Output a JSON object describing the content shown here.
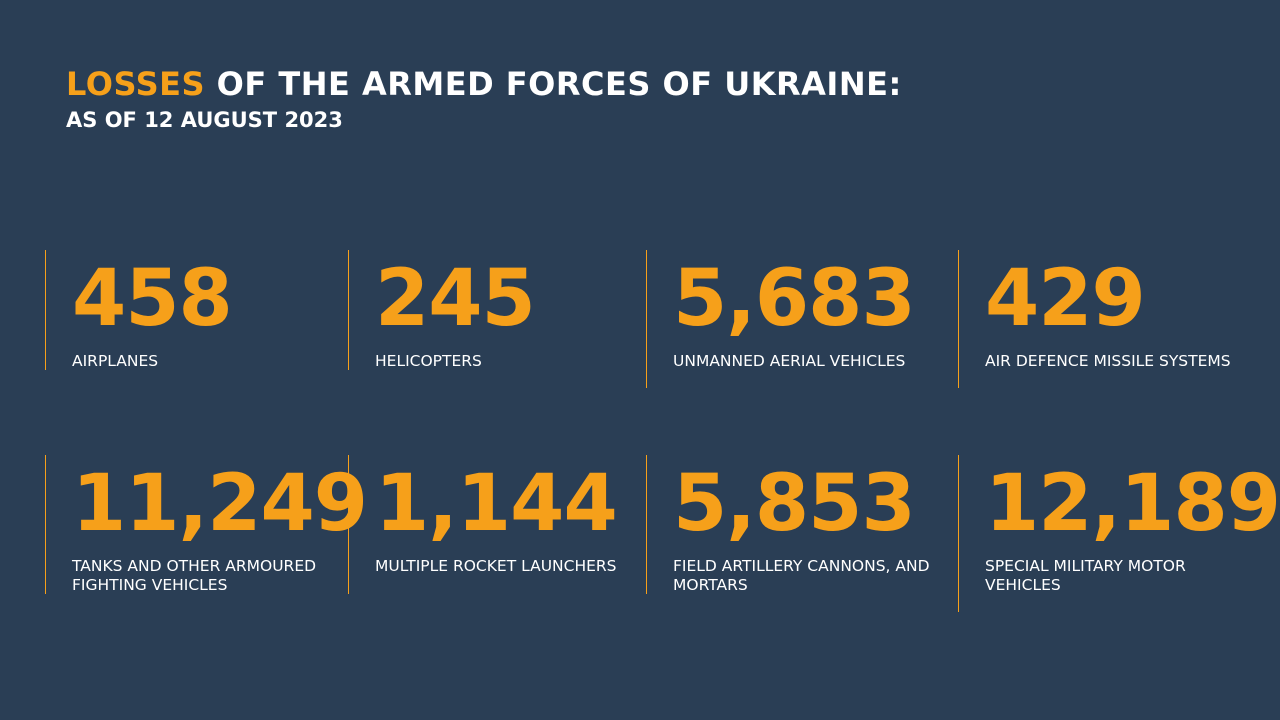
{
  "header": {
    "title_accent": "LOSSES",
    "title_rest": " OF THE ARMED FORCES OF UKRAINE:",
    "subtitle": "AS OF 12 AUGUST 2023"
  },
  "stats": [
    {
      "value": "458",
      "label": "AIRPLANES"
    },
    {
      "value": "245",
      "label": "HELICOPTERS"
    },
    {
      "value": "5,683",
      "label": "UNMANNED AERIAL VEHICLES"
    },
    {
      "value": "429",
      "label": "AIR DEFENCE MISSILE SYSTEMS"
    },
    {
      "value": "11,249",
      "label": "TANKS AND OTHER ARMOURED FIGHTING VEHICLES"
    },
    {
      "value": "1,144",
      "label": "MULTIPLE ROCKET LAUNCHERS"
    },
    {
      "value": "5,853",
      "label": "FIELD ARTILLERY CANNONS, AND MORTARS"
    },
    {
      "value": "12,189",
      "label": "SPECIAL MILITARY MOTOR VEHICLES"
    }
  ],
  "colors": {
    "background": "#2a3e55",
    "accent": "#f6a01a",
    "text": "#ffffff"
  }
}
